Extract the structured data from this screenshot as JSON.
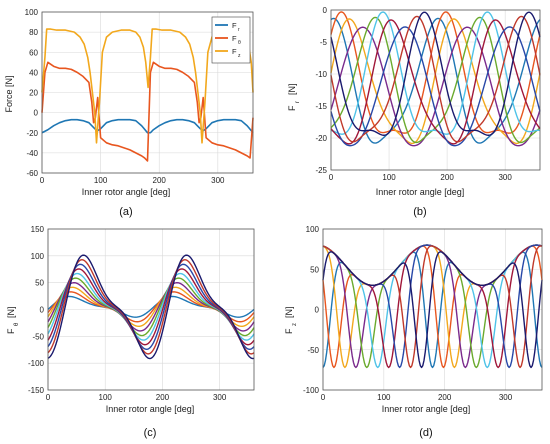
{
  "chart_data": [
    {
      "type": "line",
      "panel_label": "(a)",
      "xlabel": "Inner rotor angle [deg]",
      "ylabel": "Force [N]",
      "xlim": [
        0,
        360
      ],
      "ylim": [
        -60,
        100
      ],
      "xticks": [
        0,
        100,
        200,
        300
      ],
      "yticks": [
        -60,
        -40,
        -20,
        0,
        20,
        40,
        60,
        80,
        100
      ],
      "grid": true,
      "legend_position": "top-right",
      "series": [
        {
          "name": "F_r",
          "name_main": "F",
          "name_sub": "r",
          "color": "#1f77b4",
          "x": [
            0,
            10,
            20,
            30,
            40,
            50,
            60,
            70,
            80,
            90,
            95,
            100,
            110,
            120,
            130,
            140,
            150,
            160,
            170,
            180,
            185,
            190,
            200,
            210,
            220,
            230,
            240,
            250,
            260,
            270,
            275,
            280,
            290,
            300,
            310,
            320,
            330,
            340,
            350,
            360
          ],
          "y": [
            -20,
            -17,
            -13,
            -10,
            -8,
            -7,
            -7,
            -8,
            -10,
            -16,
            -18,
            -16,
            -10,
            -8,
            -7,
            -7,
            -7,
            -8,
            -13,
            -20,
            -20,
            -17,
            -13,
            -10,
            -8,
            -7,
            -7,
            -8,
            -10,
            -16,
            -18,
            -16,
            -10,
            -8,
            -7,
            -7,
            -7,
            -8,
            -13,
            -20
          ]
        },
        {
          "name": "F_theta",
          "name_main": "F",
          "name_sub": "θ",
          "color": "#e8561f",
          "x": [
            0,
            5,
            10,
            20,
            30,
            40,
            50,
            60,
            70,
            80,
            85,
            88,
            91,
            95,
            100,
            110,
            120,
            130,
            140,
            150,
            160,
            170,
            175,
            180,
            185,
            190,
            200,
            210,
            220,
            230,
            240,
            250,
            260,
            265,
            268,
            271,
            275,
            280,
            290,
            300,
            310,
            320,
            330,
            340,
            350,
            355,
            360
          ],
          "y": [
            0,
            40,
            50,
            46,
            44,
            44,
            43,
            40,
            36,
            30,
            10,
            -10,
            -5,
            15,
            -25,
            -30,
            -32,
            -33,
            -35,
            -37,
            -40,
            -43,
            -45,
            -48,
            40,
            50,
            46,
            44,
            44,
            43,
            40,
            36,
            30,
            10,
            -10,
            -5,
            15,
            -25,
            -30,
            -32,
            -33,
            -35,
            -37,
            -40,
            -43,
            -45,
            -5
          ]
        },
        {
          "name": "F_z",
          "name_main": "F",
          "name_sub": "z",
          "color": "#f2a81d",
          "x": [
            0,
            5,
            8,
            15,
            25,
            40,
            55,
            65,
            72,
            78,
            82,
            86,
            90,
            93,
            98,
            103,
            110,
            120,
            135,
            150,
            160,
            167,
            173,
            177,
            181,
            185,
            188,
            195,
            205,
            220,
            235,
            245,
            252,
            258,
            262,
            266,
            270,
            273,
            278,
            283,
            290,
            300,
            315,
            330,
            340,
            347,
            353,
            357,
            360
          ],
          "y": [
            20,
            55,
            83,
            83,
            82,
            82,
            80,
            75,
            68,
            55,
            40,
            20,
            0,
            -30,
            10,
            60,
            75,
            80,
            82,
            82,
            80,
            75,
            65,
            50,
            25,
            55,
            83,
            83,
            82,
            82,
            80,
            75,
            68,
            55,
            40,
            20,
            0,
            -30,
            10,
            60,
            75,
            80,
            82,
            82,
            80,
            75,
            65,
            50,
            20
          ]
        }
      ]
    },
    {
      "type": "line",
      "panel_label": "(b)",
      "xlabel": "Inner rotor angle [deg]",
      "ylabel_main": "F",
      "ylabel_sub": "r",
      "ylabel_unit": "[N]",
      "xlim": [
        0,
        360
      ],
      "ylim": [
        -25,
        0
      ],
      "xticks": [
        0,
        100,
        200,
        300
      ],
      "yticks": [
        -25,
        -20,
        -15,
        -10,
        -5,
        0
      ],
      "grid": true,
      "series_family": {
        "count": 10,
        "period_deg": 180,
        "phase_step_deg": 18,
        "min": -20,
        "max": -1.5,
        "shape": "dip",
        "colors": [
          "#1f77b4",
          "#e8561f",
          "#f2a81d",
          "#7a2a8c",
          "#6aaa2d",
          "#4fc3e8",
          "#a0173a",
          "#2848a8",
          "#c0392b",
          "#1a1a6e"
        ]
      }
    },
    {
      "type": "line",
      "panel_label": "(c)",
      "xlabel": "Inner rotor angle [deg]",
      "ylabel_main": "F",
      "ylabel_sub": "θ",
      "ylabel_unit": "[N]",
      "xlim": [
        0,
        360
      ],
      "ylim": [
        -150,
        150
      ],
      "xticks": [
        0,
        100,
        200,
        300
      ],
      "yticks": [
        -150,
        -100,
        -50,
        0,
        50,
        100,
        150
      ],
      "grid": true,
      "series_family": {
        "count": 10,
        "period_deg": 180,
        "amplitude_min": 20,
        "amplitude_max": 100,
        "peak_shift_deg": 25,
        "shape": "sawtooth",
        "colors": [
          "#1f77b4",
          "#e8561f",
          "#f2a81d",
          "#7a2a8c",
          "#6aaa2d",
          "#4fc3e8",
          "#a0173a",
          "#2848a8",
          "#c0392b",
          "#1a1a6e"
        ]
      }
    },
    {
      "type": "line",
      "panel_label": "(d)",
      "xlabel": "Inner rotor angle [deg]",
      "ylabel_main": "F",
      "ylabel_sub": "z",
      "ylabel_unit": "[N]",
      "xlim": [
        0,
        360
      ],
      "ylim": [
        -100,
        100
      ],
      "xticks": [
        0,
        100,
        200,
        300
      ],
      "yticks": [
        -100,
        -50,
        0,
        50,
        100
      ],
      "grid": true,
      "series_family": {
        "count": 10,
        "period_deg": 180,
        "phase_step_deg": 18,
        "min": -72,
        "max": 82,
        "shape": "notch",
        "colors": [
          "#1f77b4",
          "#e8561f",
          "#f2a81d",
          "#7a2a8c",
          "#6aaa2d",
          "#4fc3e8",
          "#a0173a",
          "#2848a8",
          "#c0392b",
          "#1a1a6e"
        ]
      }
    }
  ]
}
